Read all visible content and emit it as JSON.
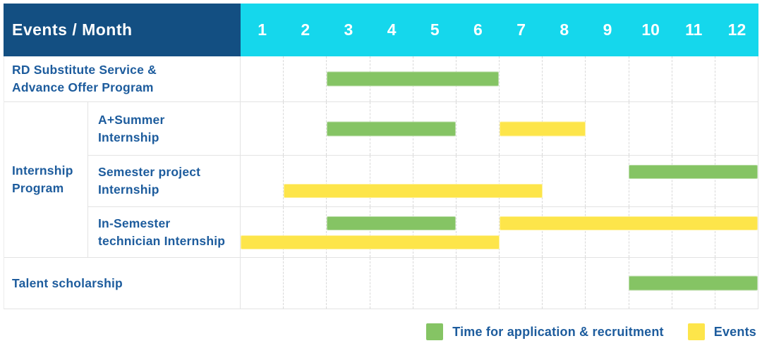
{
  "header": {
    "title": "Events / Month"
  },
  "colors": {
    "header_bg": "#134f82",
    "month_header_bg": "#15d7ec",
    "header_text": "#ffffff",
    "label_text": "#1d5c9d",
    "application_color": "#85c464",
    "events_color": "#fde54a",
    "grid_line": "#e3e3e3",
    "month_divider": "#d8d8d8"
  },
  "chart_data": {
    "type": "bar",
    "subtype": "gantt-timeline",
    "title": "Events / Month",
    "x_axis_label": "Month",
    "x_range": [
      1,
      12
    ],
    "months": [
      "1",
      "2",
      "3",
      "4",
      "5",
      "6",
      "7",
      "8",
      "9",
      "10",
      "11",
      "12"
    ],
    "grid": "dashed-vertical-month-lines",
    "series": [
      {
        "key": "application",
        "name": "Time for application & recruitment",
        "color": "#85c464"
      },
      {
        "key": "events",
        "name": "Events",
        "color": "#fde54a"
      }
    ],
    "body": [
      {
        "kind": "row",
        "id": "rd",
        "label": "RD Substitute Service & Advance Offer Program",
        "label_lines": [
          "RD Substitute Service &",
          "Advance Offer Program"
        ],
        "bars": [
          {
            "series": "application",
            "start_month": 3,
            "end_month": 6,
            "track": "center"
          }
        ]
      },
      {
        "kind": "group",
        "id": "internship",
        "label": "Internship Program",
        "label_lines": [
          "Internship",
          "Program"
        ],
        "subrows": [
          {
            "id": "aplus",
            "label": "A+Summer Internship",
            "label_lines": [
              "A+Summer",
              "Internship"
            ],
            "bars": [
              {
                "series": "application",
                "start_month": 3,
                "end_month": 5,
                "track": "center"
              },
              {
                "series": "events",
                "start_month": 7,
                "end_month": 8,
                "track": "center"
              }
            ]
          },
          {
            "id": "semester",
            "label": "Semester project Internship",
            "label_lines": [
              "Semester project",
              "Internship"
            ],
            "bars": [
              {
                "series": "application",
                "start_month": 10,
                "end_month": 12,
                "track": "top"
              },
              {
                "series": "events",
                "start_month": 2,
                "end_month": 7,
                "track": "bottom"
              }
            ]
          },
          {
            "id": "insem",
            "label": "In-Semester technician Internship",
            "label_lines": [
              "In-Semester",
              "technician Internship"
            ],
            "bars": [
              {
                "series": "application",
                "start_month": 3,
                "end_month": 5,
                "track": "top"
              },
              {
                "series": "events",
                "start_month": 7,
                "end_month": 12,
                "track": "top"
              },
              {
                "series": "events",
                "start_month": 1,
                "end_month": 6,
                "track": "bottom"
              }
            ]
          }
        ]
      },
      {
        "kind": "row",
        "id": "talent",
        "label": "Talent scholarship",
        "label_lines": [
          "Talent scholarship"
        ],
        "bars": [
          {
            "series": "application",
            "start_month": 10,
            "end_month": 12,
            "track": "center"
          }
        ]
      }
    ]
  },
  "legend": {
    "items": [
      {
        "series": "application",
        "label": "Time for application & recruitment",
        "color": "#85c464"
      },
      {
        "series": "events",
        "label": "Events",
        "color": "#fde54a"
      }
    ]
  }
}
